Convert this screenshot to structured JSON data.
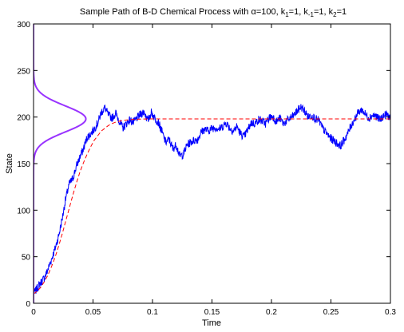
{
  "chart_data": {
    "type": "line",
    "title": {
      "prefix": "Sample Path of B-D Chemical Process with α=100, k",
      "parts": [
        {
          "text": "Sample Path of B-D Chemical Process with α=100, k",
          "sub": false
        },
        {
          "text": "1",
          "sub": true
        },
        {
          "text": "=1, k",
          "sub": false
        },
        {
          "text": "-1",
          "sub": true
        },
        {
          "text": "=1, k",
          "sub": false
        },
        {
          "text": "2",
          "sub": true
        },
        {
          "text": "=1",
          "sub": false
        }
      ]
    },
    "xlabel": "Time",
    "ylabel": "State",
    "xlim": [
      0,
      0.3
    ],
    "ylim": [
      0,
      300
    ],
    "xticks": [
      0,
      0.05,
      0.1,
      0.15,
      0.2,
      0.25,
      0.3
    ],
    "xtick_labels": [
      "0",
      "0.05",
      "0.1",
      "0.15",
      "0.2",
      "0.25",
      "0.3"
    ],
    "yticks": [
      0,
      50,
      100,
      150,
      200,
      250,
      300
    ],
    "ytick_labels": [
      "0",
      "50",
      "100",
      "150",
      "200",
      "250",
      "300"
    ],
    "grid": false,
    "series": [
      {
        "role": "sample_path",
        "color": "#0000ff",
        "style": "solid",
        "x": [
          0,
          0.003,
          0.006,
          0.009,
          0.012,
          0.015,
          0.018,
          0.021,
          0.024,
          0.027,
          0.03,
          0.033,
          0.036,
          0.039,
          0.042,
          0.045,
          0.048,
          0.051,
          0.054,
          0.057,
          0.06,
          0.063,
          0.066,
          0.069,
          0.072,
          0.075,
          0.078,
          0.081,
          0.084,
          0.087,
          0.09,
          0.093,
          0.096,
          0.099,
          0.102,
          0.105,
          0.108,
          0.111,
          0.114,
          0.117,
          0.12,
          0.123,
          0.126,
          0.129,
          0.132,
          0.135,
          0.138,
          0.141,
          0.144,
          0.147,
          0.15,
          0.153,
          0.156,
          0.159,
          0.162,
          0.165,
          0.168,
          0.171,
          0.174,
          0.177,
          0.18,
          0.183,
          0.186,
          0.189,
          0.192,
          0.195,
          0.198,
          0.201,
          0.204,
          0.207,
          0.21,
          0.213,
          0.216,
          0.219,
          0.222,
          0.225,
          0.228,
          0.231,
          0.234,
          0.237,
          0.24,
          0.243,
          0.246,
          0.249,
          0.252,
          0.255,
          0.258,
          0.261,
          0.264,
          0.267,
          0.27,
          0.273,
          0.276,
          0.279,
          0.282,
          0.285,
          0.288,
          0.291,
          0.294,
          0.297,
          0.3
        ],
        "y": [
          10,
          16,
          22,
          27,
          36,
          47,
          58,
          72,
          90,
          112,
          128,
          134,
          147,
          157,
          166,
          178,
          182,
          187,
          194,
          205,
          210,
          202,
          199,
          204,
          196,
          188,
          193,
          197,
          194,
          199,
          203,
          206,
          196,
          205,
          199,
          194,
          184,
          173,
          176,
          166,
          170,
          158,
          160,
          170,
          173,
          175,
          176,
          184,
          187,
          185,
          188,
          189,
          187,
          190,
          194,
          188,
          185,
          190,
          182,
          179,
          186,
          194,
          193,
          197,
          196,
          193,
          199,
          201,
          195,
          199,
          193,
          196,
          199,
          202,
          207,
          211,
          206,
          200,
          202,
          198,
          196,
          188,
          183,
          178,
          175,
          172,
          169,
          175,
          182,
          191,
          198,
          205,
          208,
          203,
          199,
          202,
          201,
          197,
          201,
          203,
          199
        ]
      },
      {
        "role": "mean",
        "color": "#ff0000",
        "style": "dashed",
        "x": [
          0,
          0.003,
          0.006,
          0.009,
          0.012,
          0.015,
          0.018,
          0.021,
          0.024,
          0.027,
          0.03,
          0.033,
          0.036,
          0.039,
          0.042,
          0.045,
          0.048,
          0.051,
          0.054,
          0.057,
          0.06,
          0.063,
          0.066,
          0.069,
          0.072,
          0.075,
          0.078,
          0.081,
          0.084,
          0.087,
          0.09,
          0.093,
          0.096,
          0.099,
          0.102,
          0.105,
          0.108,
          0.111,
          0.114,
          0.117,
          0.12,
          0.13,
          0.15,
          0.2,
          0.25,
          0.3
        ],
        "y": [
          10,
          13,
          17,
          23,
          30,
          39,
          49,
          61,
          74,
          88,
          102,
          116,
          129,
          141,
          151,
          160,
          168,
          175,
          180,
          185,
          188,
          191,
          193,
          194.5,
          195.5,
          196.3,
          196.8,
          197.2,
          197.5,
          197.7,
          197.8,
          197.9,
          198,
          198,
          198,
          198,
          198,
          198,
          198,
          198,
          198,
          198,
          198,
          198,
          198,
          198
        ]
      },
      {
        "role": "stationary_distribution",
        "color": "#9933ff",
        "style": "solid",
        "peak_state": 198,
        "std": 14,
        "peak_time": 0.044
      }
    ]
  }
}
